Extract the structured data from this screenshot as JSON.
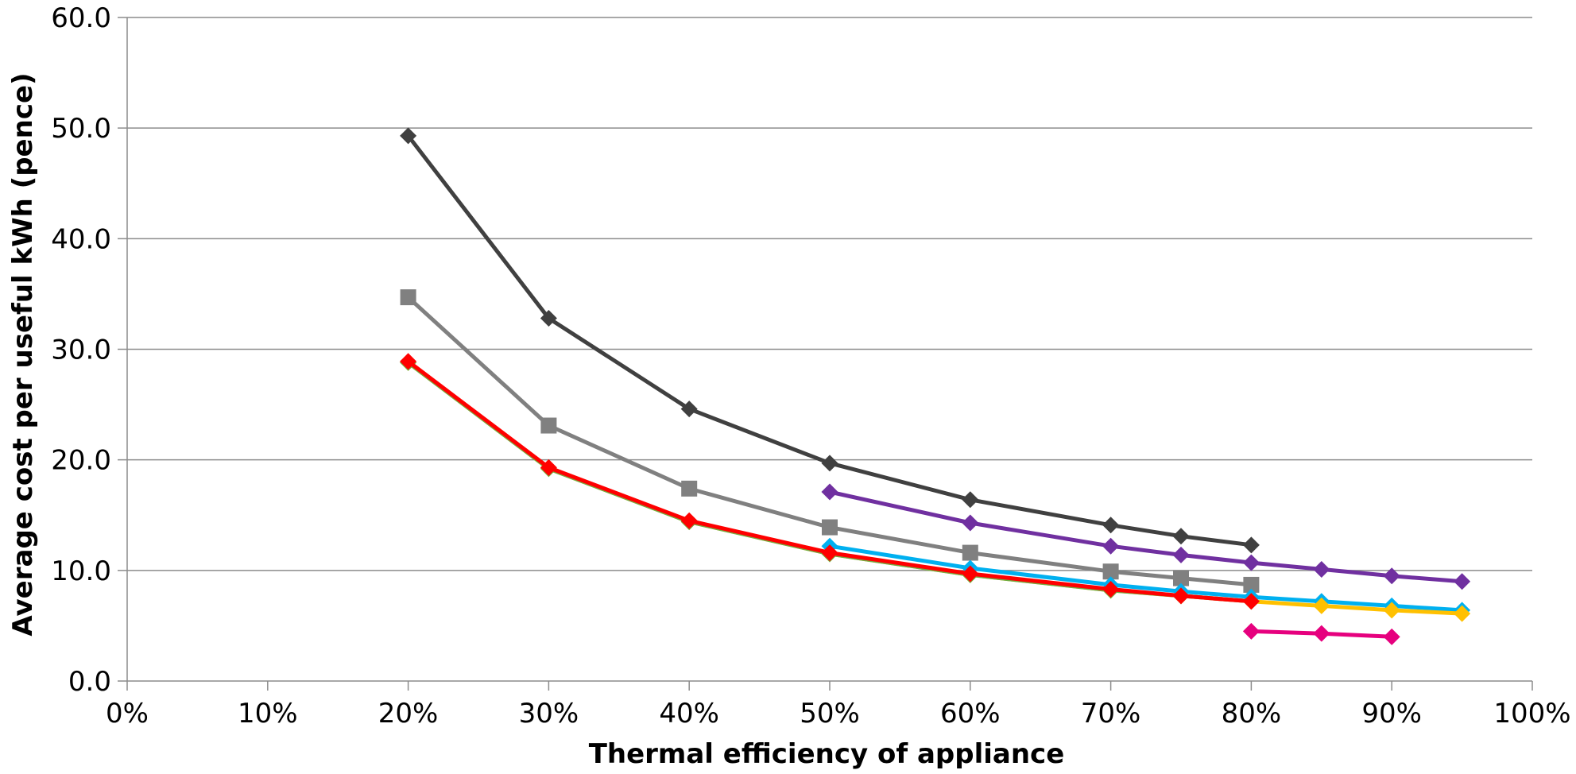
{
  "chart_data": {
    "type": "line",
    "title": "",
    "xlabel": "Thermal efficiency of appliance",
    "ylabel": "Average cost per useful kWh (pence)",
    "xlim": [
      0,
      100
    ],
    "ylim": [
      0,
      60
    ],
    "x_ticks": [
      "0%",
      "10%",
      "20%",
      "30%",
      "40%",
      "50%",
      "60%",
      "70%",
      "80%",
      "90%",
      "100%"
    ],
    "y_ticks": [
      "0.0",
      "10.0",
      "20.0",
      "30.0",
      "40.0",
      "50.0",
      "60.0"
    ],
    "grid": "horizontal",
    "legend": "none",
    "series": [
      {
        "color": "#404040",
        "marker": "diamond",
        "x": [
          20,
          30,
          40,
          50,
          60,
          70,
          75,
          80
        ],
        "y": [
          49.3,
          32.8,
          24.6,
          19.7,
          16.4,
          14.1,
          13.1,
          12.3
        ]
      },
      {
        "color": "#808080",
        "marker": "square",
        "x": [
          20,
          30,
          40,
          50,
          60,
          70,
          75,
          80
        ],
        "y": [
          34.7,
          23.1,
          17.4,
          13.9,
          11.6,
          9.9,
          9.3,
          8.7
        ]
      },
      {
        "color": "#7030A0",
        "marker": "diamond",
        "x": [
          50,
          60,
          70,
          75,
          80,
          85,
          90,
          95
        ],
        "y": [
          17.1,
          14.3,
          12.2,
          11.4,
          10.7,
          10.1,
          9.5,
          9.0
        ]
      },
      {
        "color": "#00B0F0",
        "marker": "diamond",
        "x": [
          50,
          60,
          70,
          75,
          80,
          85,
          90,
          95
        ],
        "y": [
          12.2,
          10.2,
          8.7,
          8.1,
          7.6,
          7.2,
          6.8,
          6.4
        ]
      },
      {
        "color": "#FFC000",
        "marker": "diamond",
        "x": [
          20,
          30,
          40,
          50,
          60,
          70,
          75,
          80,
          85,
          90,
          95
        ],
        "y": [
          28.8,
          19.2,
          14.4,
          11.5,
          9.6,
          8.2,
          7.7,
          7.2,
          6.8,
          6.4,
          6.1
        ]
      },
      {
        "color": "#70AD47",
        "marker": "diamond",
        "x": [
          20,
          30,
          40,
          50,
          60,
          70,
          75,
          80
        ],
        "y": [
          28.8,
          19.2,
          14.4,
          11.5,
          9.6,
          8.2,
          7.7,
          7.2
        ]
      },
      {
        "color": "#E6007E",
        "marker": "diamond",
        "x": [
          80,
          85,
          90
        ],
        "y": [
          4.5,
          4.3,
          4.0
        ]
      },
      {
        "color": "#FF0000",
        "marker": "diamond",
        "x": [
          20,
          30,
          40,
          50,
          60,
          70,
          75,
          80
        ],
        "y": [
          28.9,
          19.3,
          14.5,
          11.6,
          9.7,
          8.3,
          7.7,
          7.2
        ]
      }
    ]
  }
}
